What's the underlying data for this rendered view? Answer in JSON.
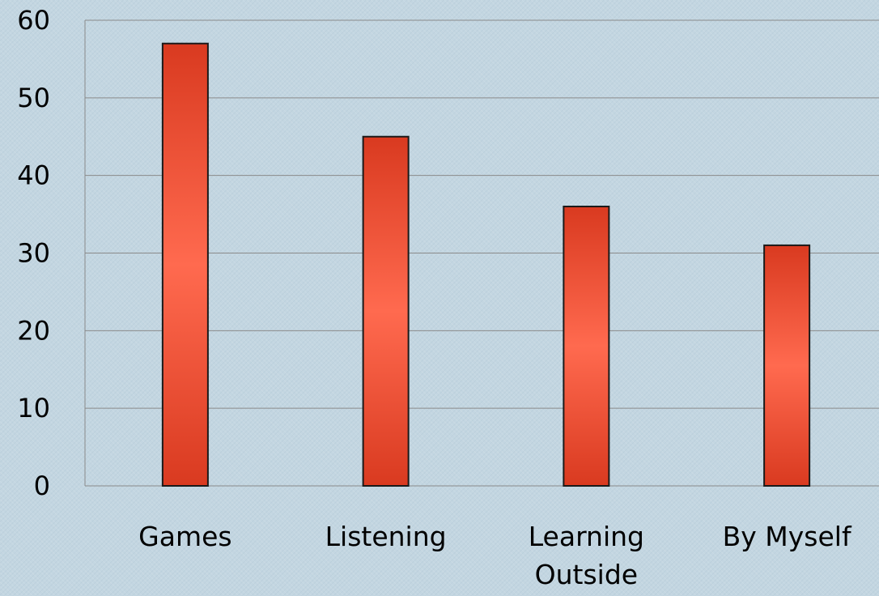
{
  "chart_data": {
    "type": "bar",
    "title": "",
    "xlabel": "",
    "ylabel": "",
    "categories": [
      "Games",
      "Listening",
      "Learning Outside",
      "By Myself"
    ],
    "category_lines": [
      [
        "Games"
      ],
      [
        "Listening"
      ],
      [
        "Learning",
        "Outside"
      ],
      [
        "By Myself"
      ]
    ],
    "values": [
      57,
      45,
      36,
      31
    ],
    "ylim": [
      0,
      60
    ],
    "yticks": [
      "0",
      "10",
      "20",
      "30",
      "40",
      "50",
      "60"
    ],
    "grid": true,
    "legend": "none",
    "colors": {
      "bar_center": "#ff6a4f",
      "bar_edge": "#d93a20",
      "bar_outline": "#1a1a1a",
      "grid": "#8a8a8a"
    }
  }
}
